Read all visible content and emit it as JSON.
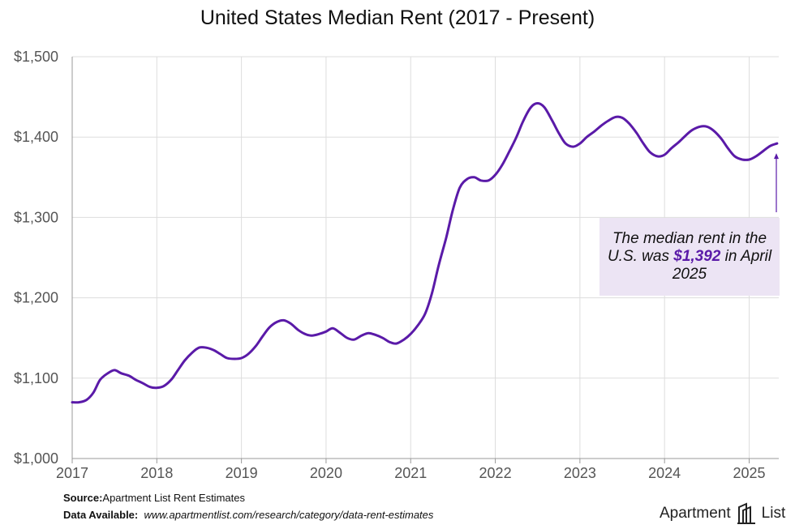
{
  "chart_data": {
    "type": "line",
    "title": "United States Median Rent (2017 - Present)",
    "xlabel": "",
    "ylabel": "",
    "x_ticks": [
      "2017",
      "2018",
      "2019",
      "2020",
      "2021",
      "2022",
      "2023",
      "2024",
      "2025"
    ],
    "y_ticks": [
      "$1,000",
      "$1,100",
      "$1,200",
      "$1,300",
      "$1,400",
      "$1,500"
    ],
    "ylim": [
      1000,
      1500
    ],
    "xlim": [
      2017.0,
      2025.35
    ],
    "grid": true,
    "series_color": "#5a1aa8",
    "x": [
      2017.0,
      2017.08,
      2017.17,
      2017.25,
      2017.33,
      2017.42,
      2017.5,
      2017.58,
      2017.67,
      2017.75,
      2017.83,
      2017.92,
      2018.0,
      2018.08,
      2018.17,
      2018.25,
      2018.33,
      2018.42,
      2018.5,
      2018.58,
      2018.67,
      2018.75,
      2018.83,
      2018.92,
      2019.0,
      2019.08,
      2019.17,
      2019.25,
      2019.33,
      2019.42,
      2019.5,
      2019.58,
      2019.67,
      2019.75,
      2019.83,
      2019.92,
      2020.0,
      2020.08,
      2020.17,
      2020.25,
      2020.33,
      2020.42,
      2020.5,
      2020.58,
      2020.67,
      2020.75,
      2020.83,
      2020.92,
      2021.0,
      2021.08,
      2021.17,
      2021.25,
      2021.33,
      2021.42,
      2021.5,
      2021.58,
      2021.67,
      2021.75,
      2021.83,
      2021.92,
      2022.0,
      2022.08,
      2022.17,
      2022.25,
      2022.33,
      2022.42,
      2022.5,
      2022.58,
      2022.67,
      2022.75,
      2022.83,
      2022.92,
      2023.0,
      2023.08,
      2023.17,
      2023.25,
      2023.33,
      2023.42,
      2023.5,
      2023.58,
      2023.67,
      2023.75,
      2023.83,
      2023.92,
      2024.0,
      2024.08,
      2024.17,
      2024.25,
      2024.33,
      2024.42,
      2024.5,
      2024.58,
      2024.67,
      2024.75,
      2024.83,
      2024.92,
      2025.0,
      2025.08,
      2025.17,
      2025.25,
      2025.33
    ],
    "values": [
      1070,
      1070,
      1073,
      1082,
      1098,
      1106,
      1110,
      1106,
      1103,
      1098,
      1094,
      1089,
      1088,
      1090,
      1098,
      1110,
      1122,
      1132,
      1138,
      1138,
      1135,
      1130,
      1125,
      1124,
      1125,
      1130,
      1140,
      1152,
      1163,
      1170,
      1172,
      1168,
      1160,
      1155,
      1153,
      1155,
      1158,
      1162,
      1156,
      1150,
      1148,
      1153,
      1156,
      1154,
      1150,
      1145,
      1143,
      1148,
      1155,
      1165,
      1180,
      1205,
      1240,
      1275,
      1310,
      1337,
      1348,
      1350,
      1346,
      1346,
      1353,
      1365,
      1383,
      1400,
      1420,
      1437,
      1442,
      1437,
      1421,
      1405,
      1392,
      1388,
      1392,
      1400,
      1407,
      1414,
      1420,
      1425,
      1424,
      1417,
      1405,
      1392,
      1381,
      1376,
      1378,
      1386,
      1394,
      1402,
      1409,
      1413,
      1413,
      1408,
      1398,
      1386,
      1376,
      1372,
      1372,
      1376,
      1383,
      1389,
      1392
    ],
    "annotation": {
      "text_before": "The median rent in the U.S. was ",
      "highlight": "$1,392",
      "text_after": " in April 2025"
    }
  },
  "footer": {
    "source_label": "Source:",
    "source_text": "Apartment List Rent Estimates",
    "data_label": "Data Available:",
    "data_url": "www.apartmentlist.com/research/category/data-rent-estimates"
  },
  "brand": {
    "name_left": "Apartment",
    "name_right": "List"
  }
}
